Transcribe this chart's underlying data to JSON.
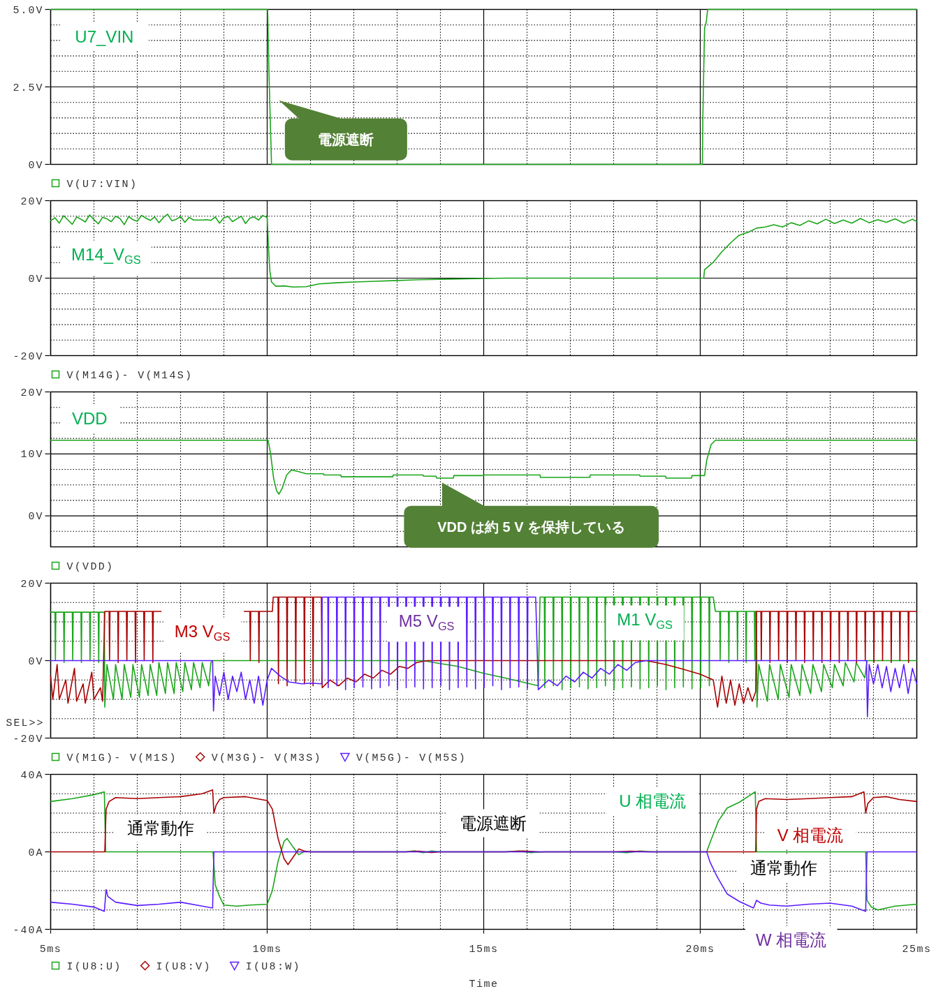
{
  "chart_data": [
    {
      "type": "line",
      "xlim": [
        5,
        25
      ],
      "xticks": [
        5,
        {
          "value": 6,
          "label": null
        },
        {
          "value": 7,
          "label": null
        },
        {
          "value": 8,
          "label": null
        },
        {
          "value": 9,
          "label": null
        },
        10,
        {
          "value": 11,
          "label": null
        },
        {
          "value": 12,
          "label": null
        },
        {
          "value": 13,
          "label": null
        },
        {
          "value": 14,
          "label": null
        },
        15,
        {
          "value": 16,
          "label": null
        },
        {
          "value": 17,
          "label": null
        },
        {
          "value": 18,
          "label": null
        },
        {
          "value": 19,
          "label": null
        },
        20,
        {
          "value": 21,
          "label": null
        },
        {
          "value": 22,
          "label": null
        },
        {
          "value": 23,
          "label": null
        },
        {
          "value": 24,
          "label": null
        },
        25
      ],
      "ylim": [
        0,
        5
      ],
      "yticks": [
        {
          "value": 0,
          "label": "0V"
        },
        {
          "value": 0.5,
          "label": null
        },
        {
          "value": 1,
          "label": null
        },
        {
          "value": 1.5,
          "label": null
        },
        {
          "value": 2,
          "label": null
        },
        {
          "value": 2.5,
          "label": "2.5V"
        },
        {
          "value": 3,
          "label": null
        },
        {
          "value": 3.5,
          "label": null
        },
        {
          "value": 4,
          "label": null
        },
        {
          "value": 4.5,
          "label": null
        },
        {
          "value": 5,
          "label": "5.0V"
        }
      ],
      "grid": true,
      "legend": "bottom",
      "tick_labels": "y",
      "series": [
        {
          "name": "V(U7:VIN)",
          "color": "#19a519",
          "x": [
            5,
            10.01,
            10.02,
            10.04,
            10.07,
            10.1,
            20.05,
            20.06,
            20.08,
            20.1,
            20.14,
            20.17,
            25
          ],
          "values": [
            5,
            5,
            4.35,
            3,
            1.5,
            0,
            0,
            1.5,
            3,
            4.4,
            4.6,
            5,
            5
          ]
        }
      ],
      "annotations": [
        "U7_VIN",
        "電源遮断"
      ]
    },
    {
      "type": "line",
      "xlim": [
        5,
        25
      ],
      "xticks": [
        5,
        {
          "value": 6,
          "label": null
        },
        {
          "value": 7,
          "label": null
        },
        {
          "value": 8,
          "label": null
        },
        {
          "value": 9,
          "label": null
        },
        10,
        {
          "value": 11,
          "label": null
        },
        {
          "value": 12,
          "label": null
        },
        {
          "value": 13,
          "label": null
        },
        {
          "value": 14,
          "label": null
        },
        15,
        {
          "value": 16,
          "label": null
        },
        {
          "value": 17,
          "label": null
        },
        {
          "value": 18,
          "label": null
        },
        {
          "value": 19,
          "label": null
        },
        20,
        {
          "value": 21,
          "label": null
        },
        {
          "value": 22,
          "label": null
        },
        {
          "value": 23,
          "label": null
        },
        {
          "value": 24,
          "label": null
        },
        25
      ],
      "ylim": [
        -20,
        20
      ],
      "yticks": [
        {
          "value": -20,
          "label": "-20V"
        },
        {
          "value": -16,
          "label": null
        },
        {
          "value": -12,
          "label": null
        },
        {
          "value": -8,
          "label": null
        },
        {
          "value": -4,
          "label": null
        },
        {
          "value": 0,
          "label": "0V"
        },
        {
          "value": 4,
          "label": null
        },
        {
          "value": 8,
          "label": null
        },
        {
          "value": 12,
          "label": null
        },
        {
          "value": 16,
          "label": null
        },
        {
          "value": 20,
          "label": "20V"
        }
      ],
      "grid": true,
      "legend": "bottom",
      "tick_labels": "y",
      "series": [
        {
          "name": "V(M14G)- V(M14S)",
          "color": "#19a519",
          "x": [
            5,
            5.1,
            5.2,
            5.3,
            5.4,
            5.5,
            5.6,
            5.7,
            5.8,
            5.9,
            6,
            6.1,
            6.2,
            6.3,
            6.4,
            6.5,
            6.6,
            6.7,
            6.8,
            6.9,
            7,
            7.1,
            7.2,
            7.3,
            7.4,
            7.5,
            7.6,
            7.7,
            7.8,
            7.9,
            8,
            8.1,
            8.2,
            8.3,
            8.4,
            8.5,
            8.6,
            8.7,
            8.8,
            8.9,
            9,
            9.1,
            9.2,
            9.3,
            9.4,
            9.5,
            9.6,
            9.7,
            9.8,
            9.9,
            10,
            10.03,
            10.06,
            10.1,
            10.2,
            10.4,
            10.6,
            10.9,
            11.2,
            11.6,
            12,
            12.5,
            13,
            13.5,
            14,
            15,
            15.5,
            20.08,
            20.1,
            20.3,
            20.5,
            20.7,
            20.9,
            21.1,
            21.3,
            21.5,
            21.7,
            21.9,
            22.1,
            22.3,
            22.5,
            22.7,
            22.9,
            23.1,
            23.3,
            23.5,
            23.7,
            23.9,
            24.1,
            24.3,
            24.5,
            24.7,
            24.9,
            25
          ],
          "values": [
            14.8,
            15.6,
            14.2,
            16.1,
            15,
            13.9,
            15.8,
            15.2,
            14.5,
            16.3,
            15.1,
            14,
            15.7,
            15.3,
            14.6,
            16,
            15.4,
            13.8,
            15.9,
            15.1,
            14.7,
            16.2,
            15.5,
            14.9,
            15.8,
            14.3,
            15.6,
            16.5,
            14.8,
            15.2,
            15.9,
            14.4,
            15.7,
            15,
            15,
            15,
            15.1,
            14.9,
            15.8,
            14.2,
            15.6,
            15.9,
            14.6,
            15.3,
            16,
            14.1,
            15.5,
            15.8,
            15,
            16.2,
            15.6,
            8,
            2,
            -1,
            -2.1,
            -2,
            -2.3,
            -2.2,
            -1.5,
            -1.2,
            -1,
            -0.8,
            -0.6,
            -0.4,
            -0.3,
            -0.1,
            0,
            0,
            2.2,
            4.1,
            6.8,
            9.1,
            11.1,
            11.8,
            12.9,
            13.2,
            13.8,
            13.2,
            14.3,
            13.6,
            14.8,
            14,
            15.2,
            14.1,
            15,
            14.2,
            15.4,
            14.3,
            15.1,
            14.4,
            15.3,
            14.2,
            15.2,
            14.6
          ]
        }
      ],
      "annotations": [
        "M14_V$_{GS}$"
      ]
    },
    {
      "type": "line",
      "xlim": [
        5,
        25
      ],
      "xticks": [
        5,
        {
          "value": 6,
          "label": null
        },
        {
          "value": 7,
          "label": null
        },
        {
          "value": 8,
          "label": null
        },
        {
          "value": 9,
          "label": null
        },
        10,
        {
          "value": 11,
          "label": null
        },
        {
          "value": 12,
          "label": null
        },
        {
          "value": 13,
          "label": null
        },
        {
          "value": 14,
          "label": null
        },
        15,
        {
          "value": 16,
          "label": null
        },
        {
          "value": 17,
          "label": null
        },
        {
          "value": 18,
          "label": null
        },
        {
          "value": 19,
          "label": null
        },
        20,
        {
          "value": 21,
          "label": null
        },
        {
          "value": 22,
          "label": null
        },
        {
          "value": 23,
          "label": null
        },
        {
          "value": 24,
          "label": null
        },
        25
      ],
      "ylim": [
        -5,
        20
      ],
      "yticks": [
        {
          "value": -2.5,
          "label": null
        },
        {
          "value": 0,
          "label": "0V"
        },
        {
          "value": 2.5,
          "label": null
        },
        {
          "value": 5,
          "label": null
        },
        {
          "value": 7.5,
          "label": null
        },
        {
          "value": 10,
          "label": "10V"
        },
        {
          "value": 12.5,
          "label": null
        },
        {
          "value": 15,
          "label": null
        },
        {
          "value": 17.5,
          "label": null
        },
        {
          "value": 20,
          "label": "20V"
        }
      ],
      "grid": true,
      "legend": "bottom",
      "tick_labels": "y",
      "series": [
        {
          "name": "V(VDD)",
          "color": "#19a519",
          "x": [
            5,
            10.02,
            10.08,
            10.15,
            10.22,
            10.27,
            10.35,
            10.45,
            10.56,
            10.7,
            10.9,
            11.3,
            11.31,
            11.7,
            11.71,
            12.9,
            12.91,
            13.6,
            13.61,
            13.9,
            13.91,
            14.3,
            14.31,
            15,
            15.01,
            16.3,
            16.31,
            17.45,
            17.46,
            18.6,
            18.61,
            19.2,
            19.21,
            19.8,
            19.81,
            20.1,
            20.15,
            20.25,
            20.35,
            25
          ],
          "values": [
            12.2,
            12.2,
            10,
            6,
            4,
            3.5,
            4.5,
            6.6,
            7.4,
            7.2,
            6.8,
            6.8,
            6.6,
            6.6,
            6.3,
            6.3,
            6.6,
            6.6,
            6.4,
            6.4,
            6.1,
            6.1,
            6.5,
            6.5,
            6.6,
            6.6,
            6.2,
            6.2,
            6.6,
            6.6,
            6.4,
            6.4,
            6.1,
            6.1,
            6.5,
            6.5,
            9,
            11.5,
            12.2,
            12.2
          ]
        }
      ],
      "annotations": [
        "VDD",
        "VDD は約 5 V を保持している"
      ]
    },
    {
      "type": "line",
      "xlim": [
        5,
        25
      ],
      "xticks": [
        5,
        {
          "value": 6,
          "label": null
        },
        {
          "value": 7,
          "label": null
        },
        {
          "value": 8,
          "label": null
        },
        {
          "value": 9,
          "label": null
        },
        10,
        {
          "value": 11,
          "label": null
        },
        {
          "value": 12,
          "label": null
        },
        {
          "value": 13,
          "label": null
        },
        {
          "value": 14,
          "label": null
        },
        15,
        {
          "value": 16,
          "label": null
        },
        {
          "value": 17,
          "label": null
        },
        {
          "value": 18,
          "label": null
        },
        {
          "value": 19,
          "label": null
        },
        20,
        {
          "value": 21,
          "label": null
        },
        {
          "value": 22,
          "label": null
        },
        {
          "value": 23,
          "label": null
        },
        {
          "value": 24,
          "label": null
        },
        25
      ],
      "ylim": [
        -20,
        20
      ],
      "yticks": [
        {
          "value": -20,
          "label": "-20V"
        },
        {
          "value": -15,
          "label": null
        },
        {
          "value": -10,
          "label": null
        },
        {
          "value": -5,
          "label": null
        },
        {
          "value": 0,
          "label": "0V"
        },
        {
          "value": 5,
          "label": null
        },
        {
          "value": 10,
          "label": null
        },
        {
          "value": 15,
          "label": null
        },
        {
          "value": 20,
          "label": "20V"
        }
      ],
      "grid": true,
      "legend": "bottom",
      "tick_labels": "y",
      "series": [
        {
          "name": "V(M1G)- V(M1S)",
          "color": "#19a519",
          "x": [
            5,
            5.1,
            5.11,
            5.12,
            5.3,
            5.31,
            5.32,
            5.5,
            5.51,
            5.52,
            5.7,
            5.71,
            5.72,
            5.9,
            5.91,
            5.92,
            6.1,
            6.11,
            6.12,
            6.24,
            6.25,
            6.3,
            6.45,
            6.5,
            6.65,
            6.7,
            6.85,
            6.9,
            7.05,
            7.1,
            7.25,
            7.3,
            7.45,
            7.5,
            7.65,
            7.7,
            7.85,
            7.9,
            8.05,
            8.1,
            8.25,
            8.3,
            8.45,
            8.5,
            8.65,
            8.7,
            8.75,
            13.6,
            13.85,
            14.4,
            15,
            15.5,
            16,
            16.26,
            16.3,
            16.4,
            16.41,
            16.42,
            16.6,
            16.61,
            16.62,
            16.8,
            16.81,
            16.82,
            17,
            17.01,
            17.02,
            17.2,
            17.21,
            17.22,
            17.4,
            17.41,
            17.42,
            17.6,
            17.61,
            17.62,
            17.8,
            17.81,
            17.82,
            18,
            18.01,
            18.02,
            18.2,
            18.21,
            18.22,
            18.4,
            18.41,
            18.42,
            18.6,
            18.61,
            18.62,
            18.8,
            18.81,
            18.82,
            19,
            19.01,
            19.02,
            19.2,
            19.21,
            19.22,
            19.4,
            19.41,
            19.42,
            19.6,
            19.61,
            19.62,
            19.8,
            19.81,
            19.82,
            20,
            20.01,
            20.02,
            20.2,
            20.21,
            20.22,
            20.3,
            20.35,
            20.45,
            20.46,
            20.47,
            20.65,
            20.66,
            20.67,
            20.85,
            20.86,
            20.87,
            21.05,
            21.06,
            21.07,
            21.25,
            21.26,
            21.27,
            21.3,
            21.31,
            21.35,
            21.55,
            21.6,
            21.8,
            21.85,
            22.05,
            22.1,
            22.3,
            22.35,
            22.55,
            22.6,
            22.8,
            22.85,
            23.05,
            23.1,
            23.3,
            23.35,
            23.55,
            23.6,
            23.8,
            23.85,
            25
          ],
          "values": [
            12.5,
            12.5,
            0,
            12.5,
            12.5,
            -0.5,
            12.5,
            12.5,
            0,
            12.5,
            12.5,
            -0.5,
            12.5,
            12.5,
            0,
            12.5,
            12.5,
            -0.5,
            12.5,
            12.5,
            -12,
            -1,
            -10,
            -1,
            -10,
            -1,
            -9.5,
            -1,
            -9.5,
            -1,
            -9,
            -1,
            -9,
            -0.5,
            -8.5,
            -0.5,
            -8.5,
            -0.5,
            -8,
            -0.5,
            -7.5,
            -0.5,
            -7,
            -0.5,
            -6.5,
            -0.5,
            0,
            0,
            -0.5,
            -1.5,
            -3.3,
            -4.5,
            -5.8,
            -6.5,
            16.4,
            16.4,
            -7,
            16.4,
            16.4,
            -6.5,
            16.4,
            16.4,
            -7.5,
            16.4,
            16.4,
            -7,
            16.4,
            16.4,
            -6.8,
            16.4,
            16.4,
            -7.3,
            16.4,
            16.4,
            -7,
            16.4,
            16.4,
            -6.5,
            16.4,
            16.4,
            -7.5,
            16.4,
            16.4,
            -7,
            16.4,
            16.4,
            -6.8,
            16.4,
            16.4,
            -7.3,
            16.4,
            16.4,
            -7,
            16.4,
            16.4,
            -6.5,
            16.4,
            16.4,
            -7.5,
            16.4,
            16.4,
            -7,
            16.4,
            16.4,
            -6.8,
            16.4,
            16.4,
            -7.3,
            16.4,
            16.4,
            -7,
            16.4,
            16.4,
            -6.5,
            16.4,
            16.4,
            12.7,
            12.7,
            0,
            12.7,
            12.7,
            -0.5,
            12.7,
            12.7,
            0,
            12.7,
            12.7,
            -0.5,
            12.7,
            12.7,
            0,
            12.7,
            12.7,
            -12,
            -1,
            -10.5,
            -1,
            -10,
            -1,
            -9.5,
            -1,
            -9,
            -1,
            -8.5,
            -1,
            -8,
            -1,
            -7,
            -1,
            -6.5,
            -0.5,
            -5.5,
            -0.5,
            -4.5,
            0,
            0
          ]
        },
        {
          "name": "V(M3G)- V(M3S)",
          "color": "#a80000",
          "x": [
            5,
            5.05,
            5.15,
            5.2,
            5.35,
            5.4,
            5.55,
            5.6,
            5.75,
            5.8,
            5.95,
            6,
            6.15,
            6.2,
            6.25,
            6.35,
            6.36,
            6.37,
            6.55,
            6.56,
            6.57,
            6.75,
            6.76,
            6.77,
            6.95,
            6.96,
            6.97,
            7.15,
            7.16,
            7.17,
            7.35,
            7.36,
            7.37,
            7.55,
            8.5,
            9.47,
            9.6,
            9.61,
            9.62,
            9.8,
            9.81,
            9.82,
            10.12,
            10.14,
            10.25,
            10.26,
            10.27,
            10.45,
            10.46,
            10.47,
            10.65,
            10.66,
            10.67,
            10.85,
            10.86,
            10.87,
            11.05,
            11.06,
            11.07,
            11.25,
            11.27,
            11.45,
            11.65,
            11.85,
            12.05,
            12.25,
            12.45,
            12.65,
            12.85,
            13.05,
            13.25,
            13.45,
            13.7,
            18.75,
            19.2,
            19.6,
            20,
            20.3,
            20.4,
            20.5,
            20.6,
            20.7,
            20.8,
            20.9,
            21,
            21.1,
            21.2,
            21.28,
            21.3,
            21.4,
            21.41,
            21.42,
            21.6,
            21.61,
            21.62,
            21.8,
            21.81,
            21.82,
            22,
            22.01,
            22.02,
            22.2,
            22.21,
            22.22,
            22.4,
            22.41,
            22.42,
            22.6,
            22.61,
            22.62,
            22.8,
            22.81,
            22.82,
            23,
            23.01,
            23.02,
            23.2,
            23.21,
            23.22,
            23.4,
            23.41,
            23.42,
            23.6,
            23.61,
            23.62,
            23.8,
            23.81,
            23.82,
            24,
            24.01,
            24.02,
            24.2,
            24.21,
            24.22,
            24.4,
            24.41,
            24.42,
            24.6,
            24.61,
            24.62,
            24.8,
            24.81,
            24.82,
            25
          ],
          "values": [
            -4,
            -10,
            -1,
            -10,
            -5,
            -11,
            -2,
            -10.5,
            -6,
            -11,
            -3,
            -10,
            -7,
            -10.5,
            12.7,
            12.7,
            0,
            12.7,
            12.7,
            -0.5,
            12.7,
            12.7,
            0,
            12.7,
            12.7,
            -0.5,
            12.7,
            12.7,
            0,
            12.7,
            12.7,
            -0.5,
            12.7,
            12.7,
            null,
            12.7,
            12.7,
            0,
            12.7,
            12.7,
            -0.5,
            12.7,
            12.7,
            16.4,
            16.4,
            -6,
            16.4,
            16.4,
            -6.5,
            16.4,
            16.4,
            -5.5,
            16.4,
            16.4,
            -6,
            16.4,
            16.4,
            -6.5,
            16.4,
            16.4,
            -7,
            -5,
            -6.5,
            -4.5,
            -5.5,
            -3.5,
            -4.5,
            -2.5,
            -3.5,
            -1.5,
            -2,
            -0.5,
            0,
            0,
            -1,
            -2.2,
            -3.5,
            -5,
            -12,
            -4,
            -11,
            -5,
            -11.5,
            -6,
            -11,
            -7,
            -10.5,
            -8,
            12.7,
            12.7,
            0,
            12.7,
            12.7,
            -0.5,
            12.7,
            12.7,
            0,
            12.7,
            12.7,
            -0.5,
            12.7,
            12.7,
            0,
            12.7,
            12.7,
            -0.5,
            12.7,
            12.7,
            0,
            12.7,
            12.7,
            -0.5,
            12.7,
            12.7,
            0,
            12.7,
            12.7,
            -0.5,
            12.7,
            12.7,
            0,
            12.7,
            12.7,
            -0.5,
            12.7,
            12.7,
            0,
            12.7,
            12.7,
            -0.5,
            12.7,
            12.7,
            0,
            12.7,
            12.7,
            -0.5,
            12.7,
            12.7,
            0,
            12.7,
            12.7,
            -0.5,
            12.7,
            12.7
          ]
        },
        {
          "name": "V(M5G)- V(M5S)",
          "color": "#5b1cff",
          "x": [
            5,
            8.74,
            8.76,
            8.8,
            8.9,
            9,
            9.1,
            9.2,
            9.3,
            9.4,
            9.5,
            9.6,
            9.7,
            9.8,
            9.9,
            10,
            10.1,
            10.3,
            10.5,
            10.8,
            11,
            11.26,
            11.27,
            11.4,
            11.41,
            11.42,
            11.6,
            11.61,
            11.62,
            11.8,
            11.81,
            11.82,
            12,
            12.01,
            12.02,
            12.2,
            12.21,
            12.22,
            12.4,
            12.41,
            12.42,
            12.6,
            12.61,
            12.62,
            12.8,
            12.81,
            12.82,
            13,
            13.01,
            13.02,
            13.2,
            13.21,
            13.22,
            13.4,
            13.41,
            13.42,
            13.6,
            13.61,
            13.62,
            13.8,
            13.81,
            13.82,
            14,
            14.01,
            14.02,
            14.2,
            14.21,
            14.22,
            14.4,
            14.41,
            14.42,
            14.6,
            14.61,
            14.62,
            14.8,
            14.81,
            14.82,
            15,
            15.01,
            15.02,
            15.2,
            15.21,
            15.22,
            15.4,
            15.41,
            15.42,
            15.6,
            15.61,
            15.62,
            15.8,
            15.81,
            15.82,
            16,
            16.01,
            16.02,
            16.2,
            16.26,
            16.5,
            16.7,
            16.9,
            17.1,
            17.3,
            17.5,
            17.7,
            17.9,
            18.1,
            18.3,
            18.5,
            18.75,
            23.84,
            23.86,
            23.9,
            24,
            24.1,
            24.2,
            24.3,
            24.4,
            24.5,
            24.6,
            24.7,
            24.8,
            24.9,
            25
          ],
          "values": [
            0,
            0,
            -13,
            -4,
            -9,
            -3,
            -10,
            -4,
            -8,
            -3,
            -10,
            -5,
            -11,
            -4,
            -11.5,
            -5,
            -2,
            -4,
            -5.5,
            -6,
            -5.8,
            -6,
            16.4,
            16.4,
            -7,
            16.4,
            16.4,
            -6.5,
            16.4,
            16.4,
            -7.5,
            16.4,
            16.4,
            -7,
            16.4,
            16.4,
            -6.8,
            16.4,
            16.4,
            -7.3,
            16.4,
            16.4,
            -7,
            16.4,
            16.4,
            -6.5,
            16.4,
            16.4,
            -7.5,
            16.4,
            16.4,
            -7,
            16.4,
            16.4,
            -6.8,
            16.4,
            16.4,
            -7.3,
            16.4,
            16.4,
            -7,
            16.4,
            16.4,
            -6.5,
            16.4,
            16.4,
            -7.5,
            16.4,
            16.4,
            -7,
            16.4,
            16.4,
            -6.8,
            16.4,
            16.4,
            -7.3,
            16.4,
            16.4,
            -7,
            16.4,
            16.4,
            -6.5,
            16.4,
            16.4,
            -7.5,
            16.4,
            16.4,
            -7,
            16.4,
            16.4,
            -6.8,
            16.4,
            16.4,
            -7.3,
            16.4,
            16.4,
            -7.5,
            -5,
            -6.5,
            -4,
            -5.5,
            -3,
            -4.5,
            -2,
            -3.5,
            -1,
            -2.5,
            -0.5,
            0,
            0,
            -14.5,
            -1,
            -6,
            -1,
            -7,
            -1.5,
            -8,
            -2,
            -7,
            -1,
            -8.5,
            -2,
            -6
          ]
        }
      ],
      "annotations": [
        "M3 V$_{GS}$",
        "M5 V$_{GS}$",
        "M1 V$_{GS}$",
        "SEL>>"
      ]
    },
    {
      "type": "line",
      "xlabel": "Time",
      "xlim": [
        5,
        25
      ],
      "xticks": [
        {
          "value": 5,
          "label": "5ms"
        },
        {
          "value": 6,
          "label": null
        },
        {
          "value": 7,
          "label": null
        },
        {
          "value": 8,
          "label": null
        },
        {
          "value": 9,
          "label": null
        },
        {
          "value": 10,
          "label": "10ms"
        },
        {
          "value": 11,
          "label": null
        },
        {
          "value": 12,
          "label": null
        },
        {
          "value": 13,
          "label": null
        },
        {
          "value": 14,
          "label": null
        },
        {
          "value": 15,
          "label": "15ms"
        },
        {
          "value": 16,
          "label": null
        },
        {
          "value": 17,
          "label": null
        },
        {
          "value": 18,
          "label": null
        },
        {
          "value": 19,
          "label": null
        },
        {
          "value": 20,
          "label": "20ms"
        },
        {
          "value": 21,
          "label": null
        },
        {
          "value": 22,
          "label": null
        },
        {
          "value": 23,
          "label": null
        },
        {
          "value": 24,
          "label": null
        },
        {
          "value": 25,
          "label": "25ms"
        }
      ],
      "ylim": [
        -40,
        40
      ],
      "yticks": [
        {
          "value": -40,
          "label": "-40A"
        },
        {
          "value": -30,
          "label": null
        },
        {
          "value": -20,
          "label": null
        },
        {
          "value": -10,
          "label": null
        },
        {
          "value": 0,
          "label": "0A"
        },
        {
          "value": 10,
          "label": null
        },
        {
          "value": 20,
          "label": null
        },
        {
          "value": 30,
          "label": null
        },
        {
          "value": 40,
          "label": "40A"
        }
      ],
      "grid": true,
      "legend": "bottom",
      "series": [
        {
          "name": "I(U8:U)",
          "color": "#19a519",
          "x": [
            5,
            5.5,
            6,
            6.24,
            6.27,
            8.75,
            8.8,
            8.9,
            9,
            9.3,
            9.6,
            10,
            10.12,
            10.25,
            10.39,
            10.46,
            10.6,
            10.73,
            10.87,
            11,
            13.2,
            13.4,
            13.6,
            13.8,
            14,
            15.5,
            15.8,
            16.1,
            16.4,
            18,
            18.3,
            18.6,
            18.9,
            20.15,
            20.21,
            20.3,
            20.42,
            20.62,
            20.9,
            21.1,
            21.27,
            21.3,
            23.82,
            23.85,
            23.95,
            24.1,
            24.5,
            25
          ],
          "values": [
            26,
            27.5,
            29.5,
            31,
            0,
            0,
            -17,
            -23,
            -27.5,
            -28,
            -27.5,
            -27,
            -20,
            -5,
            5.4,
            6.9,
            2.4,
            -1.5,
            0.3,
            0,
            0,
            0.5,
            -0.4,
            0.4,
            0,
            0,
            0.4,
            -0.4,
            0,
            0,
            -0.4,
            0.4,
            0,
            0,
            3.9,
            9,
            16,
            22.6,
            25.6,
            28.5,
            31,
            0,
            0,
            -25,
            -28.5,
            -30,
            -28,
            -27
          ]
        },
        {
          "name": "I(U8:V)",
          "color": "#a80000",
          "x": [
            5,
            6.25,
            6.28,
            6.35,
            6.5,
            7,
            7.5,
            8,
            8.5,
            8.74,
            8.77,
            8.82,
            8.9,
            9,
            9.5,
            10,
            10.12,
            10.25,
            10.39,
            10.48,
            10.62,
            10.73,
            10.87,
            11,
            13.2,
            13.5,
            13.8,
            14,
            15.5,
            15.9,
            16.3,
            18,
            18.4,
            18.8,
            21.28,
            21.3,
            21.35,
            21.5,
            22,
            22.5,
            23,
            23.5,
            23.78,
            23.82,
            23.87,
            24,
            24.3,
            24.6,
            25
          ],
          "values": [
            0,
            0,
            22,
            26,
            28,
            27.5,
            28,
            28.5,
            30,
            32,
            20,
            24,
            27,
            28,
            28.5,
            26.5,
            22,
            7,
            -3.6,
            -6.6,
            -2.1,
            1.5,
            0.3,
            0,
            0,
            0.3,
            -0.3,
            0,
            0,
            0.4,
            0,
            0,
            0.3,
            0,
            0,
            22,
            26,
            27.5,
            27,
            27.5,
            28,
            28.5,
            31,
            20,
            25,
            28,
            28.5,
            27,
            26
          ]
        },
        {
          "name": "I(U8:W)",
          "color": "#5b1cff",
          "x": [
            5,
            5.5,
            6,
            6.24,
            6.28,
            6.32,
            6.5,
            7,
            7.5,
            8,
            8.5,
            8.74,
            8.77,
            20.15,
            20.22,
            20.35,
            20.42,
            20.62,
            20.9,
            21.23,
            21.3,
            21.4,
            21.6,
            22,
            22.5,
            23,
            23.5,
            23.82,
            23.85,
            25
          ],
          "values": [
            -26,
            -27,
            -28.5,
            -30.7,
            -19.5,
            -23,
            -26,
            -27.7,
            -27,
            -26,
            -28,
            -29,
            0,
            0,
            -5,
            -11,
            -14,
            -21.7,
            -25.6,
            -29,
            -25,
            -26.5,
            -27.5,
            -28,
            -27,
            -26.5,
            -28,
            -30.7,
            0,
            0
          ]
        }
      ],
      "annotations": [
        "通常動作",
        "電源遮断",
        "U 相電流",
        "V 相電流",
        "通常動作",
        "W 相電流"
      ]
    }
  ]
}
